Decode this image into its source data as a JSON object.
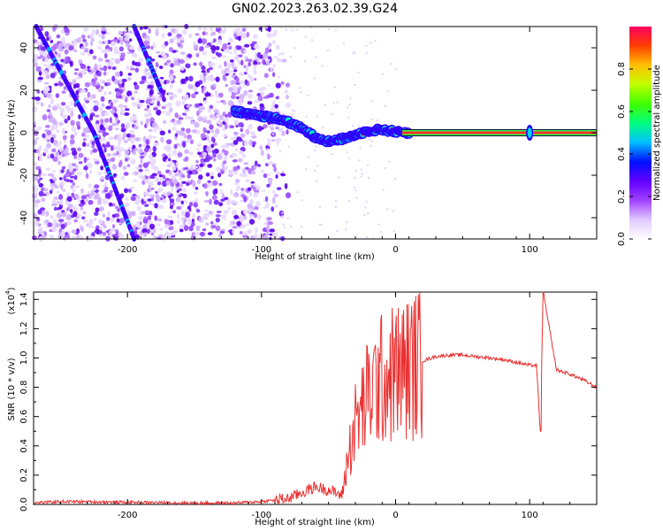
{
  "title": "GN02.2023.263.02.39.G24",
  "chart_data": [
    {
      "type": "heatmap",
      "xlabel": "Height of straight line (km)",
      "ylabel": "Frequency (Hz)",
      "xlim": [
        -270,
        150
      ],
      "ylim": [
        -50,
        50
      ],
      "xticks": [
        -200,
        -100,
        0,
        100
      ],
      "yticks": [
        -40,
        -20,
        0,
        20,
        40
      ],
      "colorbar": {
        "label": "Normalized spectral amplitude",
        "range": [
          0.0,
          1.0
        ],
        "ticks": [
          "0.0",
          "0.2",
          "0.4",
          "0.6",
          "0.8"
        ],
        "colors": [
          "#ffffff",
          "#e0c8ff",
          "#a040ff",
          "#6000ff",
          "#0010ff",
          "#00c0ff",
          "#00ff80",
          "#40ff00",
          "#c0ff00",
          "#ffc000",
          "#ff4000",
          "#ff0060"
        ]
      },
      "ridge": [
        [
          -120,
          10
        ],
        [
          -110,
          9
        ],
        [
          -100,
          8
        ],
        [
          -90,
          7
        ],
        [
          -80,
          5
        ],
        [
          -70,
          2
        ],
        [
          -60,
          -2
        ],
        [
          -50,
          -4
        ],
        [
          -40,
          -3
        ],
        [
          -30,
          -1
        ],
        [
          -20,
          1
        ],
        [
          -10,
          1.5
        ],
        [
          0,
          0.5
        ],
        [
          10,
          0
        ],
        [
          150,
          0
        ]
      ],
      "diagonal_tracks": [
        [
          [
            -268,
            50
          ],
          [
            -225,
            0
          ],
          [
            -195,
            -50
          ]
        ],
        [
          [
            -195,
            50
          ],
          [
            -175,
            20
          ]
        ]
      ],
      "spike_x": 100
    },
    {
      "type": "line",
      "xlabel": "Height of straight line (km)",
      "ylabel": "SNR (10 * v/v)",
      "multiplier": "(x10",
      "multiplier_exp": "4",
      "multiplier_close": ")",
      "xlim": [
        -270,
        150
      ],
      "ylim": [
        0,
        1.45
      ],
      "xticks": [
        -200,
        -100,
        0,
        100
      ],
      "yticks": [
        "0.0",
        "0.2",
        "0.4",
        "0.6",
        "0.8",
        "1.0",
        "1.2",
        "1.4"
      ],
      "color": "#e83030",
      "x": [
        -270,
        -250,
        -200,
        -150,
        -120,
        -100,
        -80,
        -70,
        -60,
        -50,
        -40,
        -35,
        -30,
        -25,
        -20,
        -15,
        -10,
        -5,
        0,
        10,
        20,
        30,
        40,
        50,
        60,
        70,
        80,
        90,
        100,
        105,
        108,
        110,
        120,
        130,
        140,
        150
      ],
      "y": [
        0.01,
        0.02,
        0.015,
        0.01,
        0.01,
        0.02,
        0.04,
        0.08,
        0.12,
        0.1,
        0.06,
        0.35,
        0.55,
        0.65,
        0.75,
        0.82,
        0.85,
        0.88,
        0.9,
        0.93,
        0.98,
        1.01,
        1.02,
        1.02,
        1.01,
        1.0,
        0.99,
        0.97,
        0.95,
        0.95,
        0.5,
        1.45,
        0.92,
        0.89,
        0.85,
        0.8
      ]
    }
  ]
}
